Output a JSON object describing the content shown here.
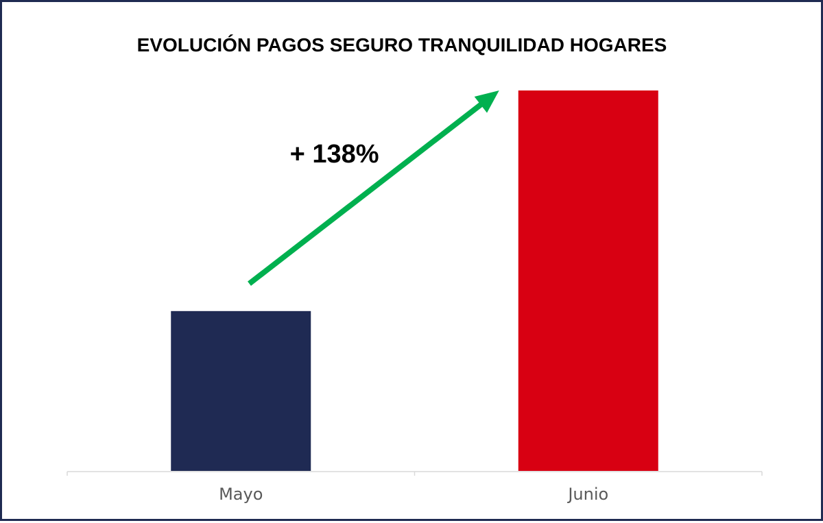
{
  "chart_data": {
    "type": "bar",
    "title": "EVOLUCIÓN PAGOS SEGURO TRANQUILIDAD HOGARES",
    "xlabel": "",
    "ylabel": "",
    "categories": [
      "Mayo",
      "Junio"
    ],
    "values": [
      100,
      238
    ],
    "bar_colors": [
      "#1f2a53",
      "#d80012"
    ],
    "ylim": [
      0,
      238
    ],
    "grid": false,
    "legend": "none",
    "annotation": {
      "text": "+ 138%",
      "arrow_color": "#00b04f"
    }
  },
  "colors": {
    "frame": "#1f2b52",
    "axis": "#d9d9d9"
  }
}
